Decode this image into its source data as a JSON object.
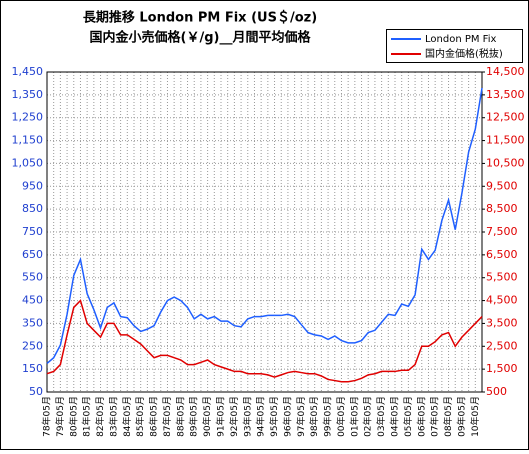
{
  "chart_data": {
    "type": "line",
    "title": "長期推移 London PM Fix (US＄/oz)",
    "subtitle": "国内金小売価格(￥/g)__月間平均価格",
    "categories": [
      "78年05月",
      null,
      "79年05月",
      null,
      "80年05月",
      null,
      "81年05月",
      null,
      "82年05月",
      null,
      "83年05月",
      null,
      "84年05月",
      null,
      "85年05月",
      null,
      "86年05月",
      null,
      "87年05月",
      null,
      "88年05月",
      null,
      "89年05月",
      null,
      "90年05月",
      null,
      "91年05月",
      null,
      "92年05月",
      null,
      "93年05月",
      null,
      "94年05月",
      null,
      "95年05月",
      null,
      "96年05月",
      null,
      "97年05月",
      null,
      "98年05月",
      null,
      "99年05月",
      null,
      "00年05月",
      null,
      "01年05月",
      null,
      "02年05月",
      null,
      "03年05月",
      null,
      "04年05月",
      null,
      "05年05月",
      null,
      "06年05月",
      null,
      "07年05月",
      null,
      "08年05月",
      null,
      "09年05月",
      null,
      "10年05月",
      null
    ],
    "series": [
      {
        "name": "London PM Fix",
        "color": "#1f5fff",
        "values": [
          175,
          200,
          255,
          390,
          560,
          630,
          480,
          410,
          330,
          420,
          440,
          380,
          375,
          340,
          315,
          325,
          340,
          400,
          450,
          465,
          450,
          420,
          370,
          390,
          370,
          380,
          360,
          360,
          340,
          335,
          370,
          380,
          380,
          385,
          385,
          385,
          390,
          380,
          345,
          310,
          300,
          295,
          280,
          295,
          275,
          265,
          265,
          275,
          310,
          320,
          355,
          390,
          385,
          435,
          425,
          475,
          675,
          630,
          670,
          800,
          890,
          760,
          920,
          1100,
          1200,
          1380
        ]
      },
      {
        "name": "国内金価格(税抜)",
        "color": "#e00000",
        "axis": "y2",
        "values": [
          1300,
          1400,
          1700,
          3000,
          4200,
          4500,
          3500,
          3200,
          2900,
          3500,
          3500,
          3000,
          3000,
          2800,
          2600,
          2300,
          2000,
          2100,
          2100,
          2000,
          1900,
          1700,
          1700,
          1800,
          1900,
          1700,
          1600,
          1500,
          1400,
          1400,
          1300,
          1300,
          1300,
          1250,
          1150,
          1250,
          1350,
          1400,
          1350,
          1300,
          1300,
          1200,
          1050,
          1000,
          950,
          950,
          1000,
          1100,
          1250,
          1300,
          1400,
          1400,
          1400,
          1450,
          1450,
          1700,
          2500,
          2500,
          2700,
          3000,
          3100,
          2500,
          2900,
          3200,
          3500,
          3800
        ]
      }
    ],
    "ylim": [
      50,
      1450
    ],
    "yticks": [
      50,
      150,
      250,
      350,
      450,
      550,
      650,
      750,
      850,
      950,
      {
        "value": 1050,
        "label": "1,050"
      },
      {
        "value": 1150,
        "label": "1,150"
      },
      {
        "value": 1250,
        "label": "1,250"
      },
      {
        "value": 1350,
        "label": "1,350"
      },
      {
        "value": 1450,
        "label": "1,450"
      }
    ],
    "y2lim": [
      500,
      14500
    ],
    "y2ticks": [
      500,
      {
        "value": 1500,
        "label": "1,500"
      },
      {
        "value": 2500,
        "label": "2,500"
      },
      {
        "value": 3500,
        "label": "3,500"
      },
      {
        "value": 4500,
        "label": "4,500"
      },
      {
        "value": 5500,
        "label": "5,500"
      },
      {
        "value": 6500,
        "label": "6,500"
      },
      {
        "value": 7500,
        "label": "7,500"
      },
      {
        "value": 8500,
        "label": "8,500"
      },
      {
        "value": 9500,
        "label": "9,500"
      },
      {
        "value": 10500,
        "label": "10,500"
      },
      {
        "value": 11500,
        "label": "11,500"
      },
      {
        "value": 12500,
        "label": "12,500"
      },
      {
        "value": 13500,
        "label": "13,500"
      },
      {
        "value": 14500,
        "label": "14,500"
      }
    ],
    "grid": true,
    "legend": "top-right",
    "ylabel_color": "#1f3fcf",
    "y2label_color": "#e00000"
  }
}
